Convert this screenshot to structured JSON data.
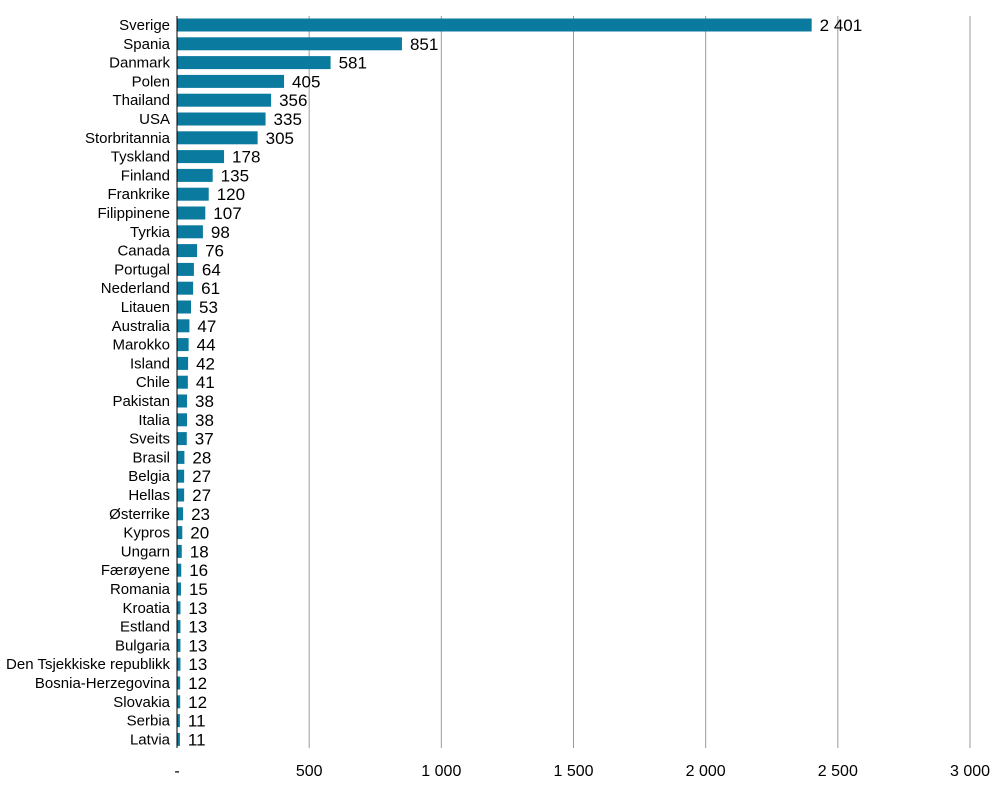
{
  "chart_data": {
    "type": "bar",
    "orientation": "horizontal",
    "categories": [
      "Sverige",
      "Spania",
      "Danmark",
      "Polen",
      "Thailand",
      "USA",
      "Storbritannia",
      "Tyskland",
      "Finland",
      "Frankrike",
      "Filippinene",
      "Tyrkia",
      "Canada",
      "Portugal",
      "Nederland",
      "Litauen",
      "Australia",
      "Marokko",
      "Island",
      "Chile",
      "Pakistan",
      "Italia",
      "Sveits",
      "Brasil",
      "Belgia",
      "Hellas",
      "Østerrike",
      "Kypros",
      "Ungarn",
      "Færøyene",
      "Romania",
      "Kroatia",
      "Estland",
      "Bulgaria",
      "Den Tsjekkiske republikk",
      "Bosnia-Herzegovina",
      "Slovakia",
      "Serbia",
      "Latvia"
    ],
    "values": [
      2401,
      851,
      581,
      405,
      356,
      335,
      305,
      178,
      135,
      120,
      107,
      98,
      76,
      64,
      61,
      53,
      47,
      44,
      42,
      41,
      38,
      38,
      37,
      28,
      27,
      27,
      23,
      20,
      18,
      16,
      15,
      13,
      13,
      13,
      13,
      12,
      12,
      11,
      11
    ],
    "value_labels": [
      "2 401",
      "851",
      "581",
      "405",
      "356",
      "335",
      "305",
      "178",
      "135",
      "120",
      "107",
      "98",
      "76",
      "64",
      "61",
      "53",
      "47",
      "44",
      "42",
      "41",
      "38",
      "38",
      "37",
      "28",
      "27",
      "27",
      "23",
      "20",
      "18",
      "16",
      "15",
      "13",
      "13",
      "13",
      "13",
      "12",
      "12",
      "11",
      "11"
    ],
    "x_ticks": [
      0,
      500,
      1000,
      1500,
      2000,
      2500,
      3000
    ],
    "x_tick_labels": [
      "-",
      "500",
      "1 000",
      "1 500",
      "2 000",
      "2 500",
      "3 000"
    ],
    "xlim": [
      0,
      3000
    ],
    "grid": "vertical",
    "bar_color": "#0a7a9e",
    "grid_color": "#9a9a9a",
    "title": "",
    "xlabel": "",
    "ylabel": ""
  }
}
